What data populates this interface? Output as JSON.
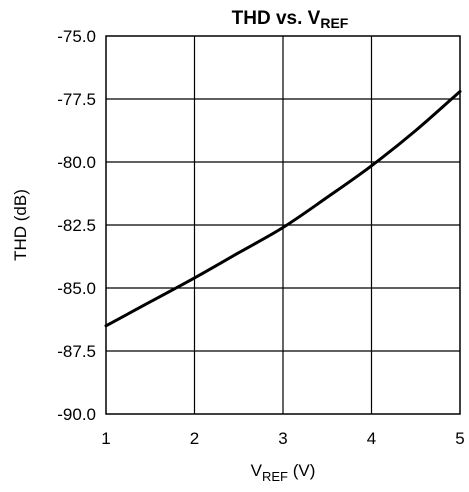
{
  "chart_data": {
    "type": "line",
    "title": {
      "main": "THD vs. V",
      "sub": "REF"
    },
    "xlabel": {
      "main": "V",
      "sub": "REF",
      "suffix": " (V)"
    },
    "ylabel": "THD (dB)",
    "xlim": [
      1,
      5
    ],
    "ylim": [
      -90,
      -75
    ],
    "x_ticks": [
      1,
      2,
      3,
      4,
      5
    ],
    "x_tick_labels": [
      "1",
      "2",
      "3",
      "4",
      "5"
    ],
    "y_ticks": [
      -75,
      -77.5,
      -80,
      -82.5,
      -85,
      -87.5,
      -90
    ],
    "y_tick_labels": [
      "-75.0",
      "-77.5",
      "-80.0",
      "-82.5",
      "-85.0",
      "-87.5",
      "-90.0"
    ],
    "grid": true,
    "series": [
      {
        "x": [
          1.0,
          1.5,
          2.0,
          2.5,
          3.0,
          3.5,
          4.0,
          4.5,
          5.0
        ],
        "y": [
          -86.5,
          -85.55,
          -84.6,
          -83.6,
          -82.6,
          -81.4,
          -80.15,
          -78.75,
          -77.2
        ]
      }
    ]
  }
}
